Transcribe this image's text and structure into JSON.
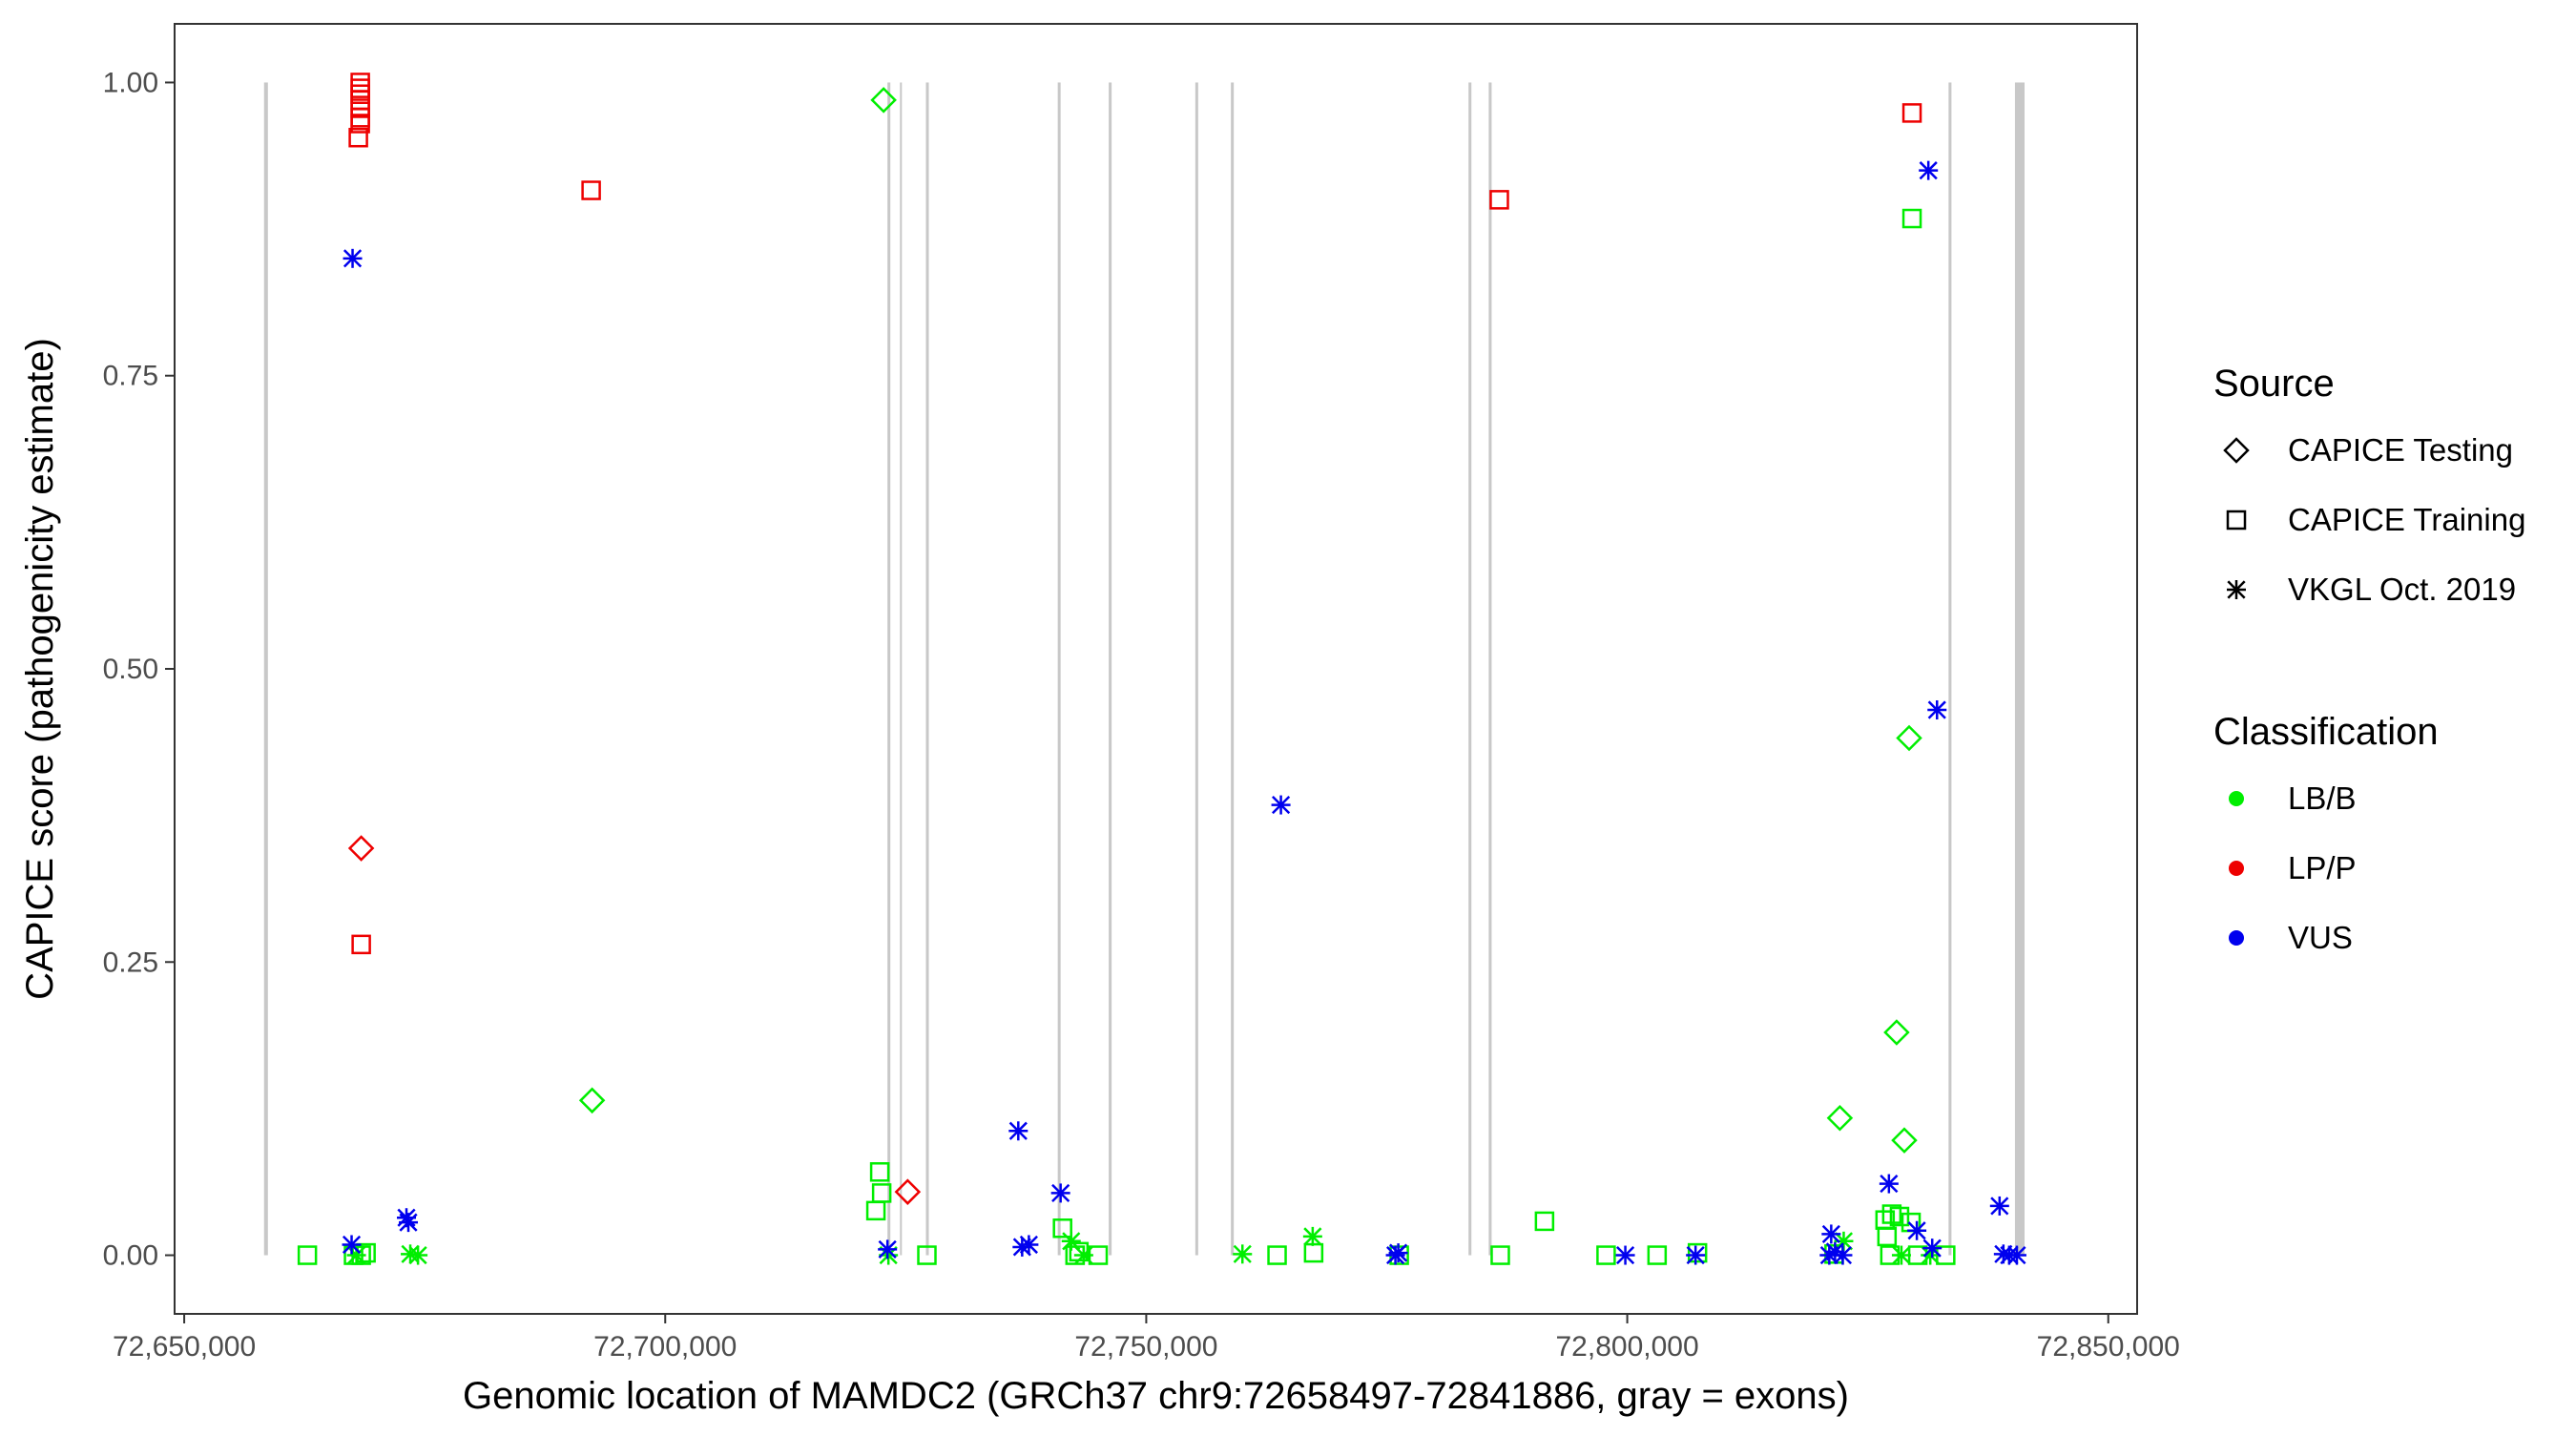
{
  "chart_data": {
    "type": "scatter",
    "xlabel": "Genomic location of MAMDC2 (GRCh37 chr9:72658497-72841886, gray = exons)",
    "ylabel": "CAPICE score (pathogenicity estimate)",
    "xlim": [
      72649000,
      72853000
    ],
    "ylim": [
      -0.05,
      1.05
    ],
    "x_ticks": [
      {
        "value": 72650000,
        "label": "72,650,000"
      },
      {
        "value": 72700000,
        "label": "72,700,000"
      },
      {
        "value": 72750000,
        "label": "72,750,000"
      },
      {
        "value": 72800000,
        "label": "72,800,000"
      },
      {
        "value": 72850000,
        "label": "72,850,000"
      }
    ],
    "y_ticks": [
      {
        "value": 0.0,
        "label": "0.00"
      },
      {
        "value": 0.25,
        "label": "0.25"
      },
      {
        "value": 0.5,
        "label": "0.50"
      },
      {
        "value": 0.75,
        "label": "0.75"
      },
      {
        "value": 1.0,
        "label": "1.00"
      }
    ],
    "grid": false,
    "exon_color": "#c8c8c8",
    "exons": [
      {
        "start": 72658300,
        "end": 72658700
      },
      {
        "start": 72723100,
        "end": 72723400
      },
      {
        "start": 72724400,
        "end": 72724600
      },
      {
        "start": 72727100,
        "end": 72727400
      },
      {
        "start": 72740800,
        "end": 72741100
      },
      {
        "start": 72746100,
        "end": 72746400
      },
      {
        "start": 72755100,
        "end": 72755400
      },
      {
        "start": 72758800,
        "end": 72759100
      },
      {
        "start": 72783500,
        "end": 72783800
      },
      {
        "start": 72785600,
        "end": 72785900
      },
      {
        "start": 72833400,
        "end": 72833700
      },
      {
        "start": 72840300,
        "end": 72841300
      }
    ],
    "legend": {
      "placement": "right",
      "source_title": "Source",
      "source_items": [
        {
          "label": "CAPICE Testing",
          "shape": "diamond"
        },
        {
          "label": "CAPICE Training",
          "shape": "square"
        },
        {
          "label": "VKGL Oct. 2019",
          "shape": "asterisk"
        }
      ],
      "class_title": "Classification",
      "class_items": [
        {
          "label": "LB/B",
          "color": "#00ee00"
        },
        {
          "label": "LP/P",
          "color": "#ee0000"
        },
        {
          "label": "VUS",
          "color": "#0000ee"
        }
      ]
    },
    "series": [
      {
        "name": "LB/B",
        "color": "#00ee00",
        "points": [
          {
            "x": 72662800,
            "y": 0.0,
            "shape": "square"
          },
          {
            "x": 72667600,
            "y": 0.0,
            "shape": "square"
          },
          {
            "x": 72668400,
            "y": 0.0,
            "shape": "square"
          },
          {
            "x": 72668900,
            "y": 0.002,
            "shape": "square"
          },
          {
            "x": 72667900,
            "y": 0.0,
            "shape": "asterisk"
          },
          {
            "x": 72673500,
            "y": 0.001,
            "shape": "asterisk"
          },
          {
            "x": 72674300,
            "y": 0.0,
            "shape": "asterisk"
          },
          {
            "x": 72692400,
            "y": 0.132,
            "shape": "diamond"
          },
          {
            "x": 72722700,
            "y": 0.985,
            "shape": "diamond"
          },
          {
            "x": 72721900,
            "y": 0.038,
            "shape": "square"
          },
          {
            "x": 72722300,
            "y": 0.071,
            "shape": "square"
          },
          {
            "x": 72722500,
            "y": 0.053,
            "shape": "square"
          },
          {
            "x": 72723200,
            "y": 0.0,
            "shape": "asterisk"
          },
          {
            "x": 72727200,
            "y": 0.0,
            "shape": "square"
          },
          {
            "x": 72741300,
            "y": 0.023,
            "shape": "square"
          },
          {
            "x": 72742200,
            "y": 0.012,
            "shape": "asterisk"
          },
          {
            "x": 72742600,
            "y": 0.0,
            "shape": "square"
          },
          {
            "x": 72743000,
            "y": 0.003,
            "shape": "square"
          },
          {
            "x": 72743500,
            "y": 0.0,
            "shape": "asterisk"
          },
          {
            "x": 72745000,
            "y": 0.0,
            "shape": "square"
          },
          {
            "x": 72760000,
            "y": 0.001,
            "shape": "asterisk"
          },
          {
            "x": 72763600,
            "y": 0.0,
            "shape": "square"
          },
          {
            "x": 72767300,
            "y": 0.016,
            "shape": "asterisk"
          },
          {
            "x": 72767400,
            "y": 0.002,
            "shape": "square"
          },
          {
            "x": 72776300,
            "y": 0.0,
            "shape": "square"
          },
          {
            "x": 72786800,
            "y": 0.0,
            "shape": "square"
          },
          {
            "x": 72791400,
            "y": 0.029,
            "shape": "square"
          },
          {
            "x": 72797800,
            "y": 0.0,
            "shape": "square"
          },
          {
            "x": 72803100,
            "y": 0.0,
            "shape": "square"
          },
          {
            "x": 72807300,
            "y": 0.002,
            "shape": "square"
          },
          {
            "x": 72821500,
            "y": 0.001,
            "shape": "square"
          },
          {
            "x": 72822100,
            "y": 0.117,
            "shape": "diamond"
          },
          {
            "x": 72822500,
            "y": 0.012,
            "shape": "asterisk"
          },
          {
            "x": 72826800,
            "y": 0.03,
            "shape": "square"
          },
          {
            "x": 72827000,
            "y": 0.016,
            "shape": "square"
          },
          {
            "x": 72827300,
            "y": 0.0,
            "shape": "square"
          },
          {
            "x": 72827500,
            "y": 0.035,
            "shape": "square"
          },
          {
            "x": 72828000,
            "y": 0.19,
            "shape": "diamond"
          },
          {
            "x": 72828300,
            "y": 0.033,
            "shape": "square"
          },
          {
            "x": 72828500,
            "y": 0.0,
            "shape": "asterisk"
          },
          {
            "x": 72828800,
            "y": 0.098,
            "shape": "diamond"
          },
          {
            "x": 72829300,
            "y": 0.441,
            "shape": "diamond"
          },
          {
            "x": 72829600,
            "y": 0.884,
            "shape": "square"
          },
          {
            "x": 72829500,
            "y": 0.028,
            "shape": "square"
          },
          {
            "x": 72830200,
            "y": 0.0,
            "shape": "square"
          },
          {
            "x": 72831500,
            "y": 0.0,
            "shape": "asterisk"
          },
          {
            "x": 72833100,
            "y": 0.0,
            "shape": "square"
          }
        ]
      },
      {
        "name": "LP/P",
        "color": "#ee0000",
        "points": [
          {
            "x": 72668300,
            "y": 1.0,
            "shape": "square"
          },
          {
            "x": 72668300,
            "y": 0.995,
            "shape": "square"
          },
          {
            "x": 72668300,
            "y": 0.99,
            "shape": "square"
          },
          {
            "x": 72668300,
            "y": 0.985,
            "shape": "square"
          },
          {
            "x": 72668300,
            "y": 0.978,
            "shape": "square"
          },
          {
            "x": 72668300,
            "y": 0.97,
            "shape": "square"
          },
          {
            "x": 72668300,
            "y": 0.965,
            "shape": "square"
          },
          {
            "x": 72668100,
            "y": 0.953,
            "shape": "square"
          },
          {
            "x": 72668400,
            "y": 0.347,
            "shape": "diamond"
          },
          {
            "x": 72668400,
            "y": 0.265,
            "shape": "square"
          },
          {
            "x": 72692300,
            "y": 0.908,
            "shape": "square"
          },
          {
            "x": 72725200,
            "y": 0.054,
            "shape": "diamond"
          },
          {
            "x": 72786700,
            "y": 0.9,
            "shape": "square"
          },
          {
            "x": 72829600,
            "y": 0.974,
            "shape": "square"
          }
        ]
      },
      {
        "name": "VUS",
        "color": "#0000ee",
        "points": [
          {
            "x": 72667500,
            "y": 0.85,
            "shape": "asterisk"
          },
          {
            "x": 72667400,
            "y": 0.009,
            "shape": "asterisk"
          },
          {
            "x": 72673100,
            "y": 0.032,
            "shape": "asterisk"
          },
          {
            "x": 72673300,
            "y": 0.028,
            "shape": "asterisk"
          },
          {
            "x": 72723100,
            "y": 0.005,
            "shape": "asterisk"
          },
          {
            "x": 72736700,
            "y": 0.106,
            "shape": "asterisk"
          },
          {
            "x": 72737100,
            "y": 0.007,
            "shape": "asterisk"
          },
          {
            "x": 72737800,
            "y": 0.009,
            "shape": "asterisk"
          },
          {
            "x": 72741100,
            "y": 0.053,
            "shape": "asterisk"
          },
          {
            "x": 72764000,
            "y": 0.384,
            "shape": "asterisk"
          },
          {
            "x": 72775900,
            "y": 0.0,
            "shape": "asterisk"
          },
          {
            "x": 72776200,
            "y": 0.002,
            "shape": "asterisk"
          },
          {
            "x": 72799800,
            "y": 0.0,
            "shape": "asterisk"
          },
          {
            "x": 72807100,
            "y": 0.0,
            "shape": "asterisk"
          },
          {
            "x": 72821200,
            "y": 0.018,
            "shape": "asterisk"
          },
          {
            "x": 72821000,
            "y": 0.0,
            "shape": "asterisk"
          },
          {
            "x": 72821600,
            "y": 0.003,
            "shape": "asterisk"
          },
          {
            "x": 72822400,
            "y": 0.0,
            "shape": "asterisk"
          },
          {
            "x": 72827200,
            "y": 0.061,
            "shape": "asterisk"
          },
          {
            "x": 72830100,
            "y": 0.021,
            "shape": "asterisk"
          },
          {
            "x": 72831300,
            "y": 0.925,
            "shape": "asterisk"
          },
          {
            "x": 72831700,
            "y": 0.006,
            "shape": "asterisk"
          },
          {
            "x": 72832200,
            "y": 0.465,
            "shape": "asterisk"
          },
          {
            "x": 72838700,
            "y": 0.042,
            "shape": "asterisk"
          },
          {
            "x": 72839100,
            "y": 0.001,
            "shape": "asterisk"
          },
          {
            "x": 72839700,
            "y": 0.0,
            "shape": "asterisk"
          },
          {
            "x": 72840500,
            "y": 0.0,
            "shape": "asterisk"
          }
        ]
      }
    ]
  }
}
